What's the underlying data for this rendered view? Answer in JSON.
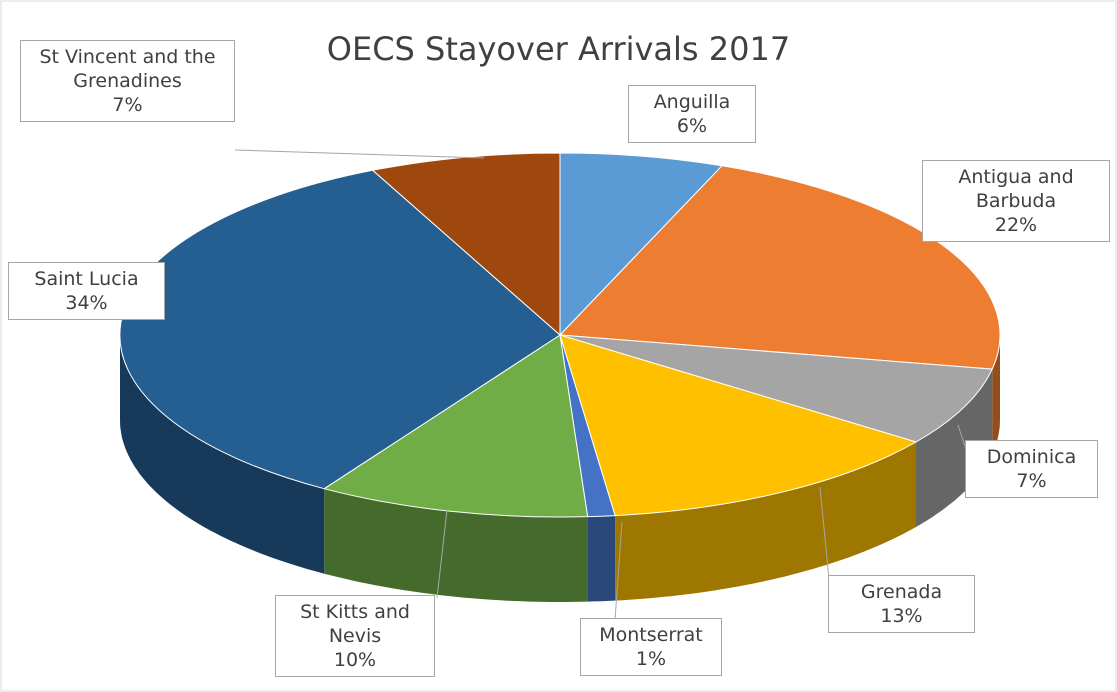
{
  "chart_data": {
    "type": "pie3d",
    "title": "OECS Stayover Arrivals 2017",
    "categories": [
      "Anguilla",
      "Antigua and Barbuda",
      "Dominica",
      "Grenada",
      "Montserrat",
      "St Kitts and Nevis",
      "Saint Lucia",
      "St Vincent and the Grenadines"
    ],
    "values": [
      6,
      22,
      7,
      13,
      1,
      10,
      34,
      7
    ],
    "value_labels": [
      "6%",
      "22%",
      "7%",
      "13%",
      "1%",
      "10%",
      "34%",
      "7%"
    ],
    "colors": [
      "#5b9bd5",
      "#ed7d31",
      "#a5a5a5",
      "#ffc000",
      "#4472c4",
      "#70ad47",
      "#255e91",
      "#9e480e"
    ]
  }
}
